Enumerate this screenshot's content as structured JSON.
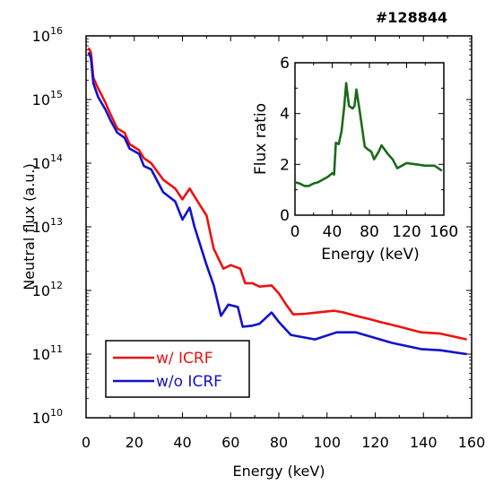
{
  "shot_label": "#128844",
  "chart_data": [
    {
      "type": "line",
      "xlabel": "Energy (keV)",
      "ylabel": "Neutral flux (a.u.)",
      "xlim": [
        0,
        160
      ],
      "ylim_log10": [
        10,
        16
      ],
      "yscale": "log",
      "x_ticks": [
        "0",
        "20",
        "40",
        "60",
        "80",
        "100",
        "120",
        "140",
        "160"
      ],
      "y_ticks": [
        {
          "base": "10",
          "exp": "10"
        },
        {
          "base": "10",
          "exp": "11"
        },
        {
          "base": "10",
          "exp": "12"
        },
        {
          "base": "10",
          "exp": "13"
        },
        {
          "base": "10",
          "exp": "14"
        },
        {
          "base": "10",
          "exp": "15"
        },
        {
          "base": "10",
          "exp": "16"
        }
      ],
      "legend_position": "bottom-left",
      "series": [
        {
          "name": "w/ ICRF",
          "color": "#ee1111",
          "points": [
            [
              1,
              6500000000000000.0
            ],
            [
              2,
              5500000000000000.0
            ],
            [
              3,
              2200000000000000.0
            ],
            [
              5,
              1500000000000000.0
            ],
            [
              8,
              900000000000000.0
            ],
            [
              10,
              600000000000000.0
            ],
            [
              13,
              350000000000000.0
            ],
            [
              16,
              300000000000000.0
            ],
            [
              18,
              200000000000000.0
            ],
            [
              22,
              160000000000000.0
            ],
            [
              24,
              120000000000000.0
            ],
            [
              27,
              100000000000000.0
            ],
            [
              32,
              55000000000000.0
            ],
            [
              37,
              40000000000000.0
            ],
            [
              40,
              27000000000000.0
            ],
            [
              43,
              40000000000000.0
            ],
            [
              45,
              30000000000000.0
            ],
            [
              50,
              15000000000000.0
            ],
            [
              53,
              4500000000000.0
            ],
            [
              57,
              2200000000000.0
            ],
            [
              60,
              2500000000000.0
            ],
            [
              64,
              2200000000000.0
            ],
            [
              66,
              1300000000000.0
            ],
            [
              69,
              1300000000000.0
            ],
            [
              72,
              1150000000000.0
            ],
            [
              77,
              1200000000000.0
            ],
            [
              80,
              900000000000.0
            ],
            [
              83,
              600000000000.0
            ],
            [
              86,
              420000000000.0
            ],
            [
              91,
              430000000000.0
            ],
            [
              96,
              450000000000.0
            ],
            [
              103,
              480000000000.0
            ],
            [
              107,
              450000000000.0
            ],
            [
              112,
              400000000000.0
            ],
            [
              117,
              360000000000.0
            ],
            [
              122,
              320000000000.0
            ],
            [
              130,
              270000000000.0
            ],
            [
              139,
              220000000000.0
            ],
            [
              147,
              210000000000.0
            ],
            [
              158,
              170000000000.0
            ]
          ]
        },
        {
          "name": "w/o ICRF",
          "color": "#1111cc",
          "points": [
            [
              1,
              5500000000000000.0
            ],
            [
              2,
              4500000000000000.0
            ],
            [
              3,
              1800000000000000.0
            ],
            [
              5,
              1100000000000000.0
            ],
            [
              8,
              700000000000000.0
            ],
            [
              10,
              480000000000000.0
            ],
            [
              13,
              300000000000000.0
            ],
            [
              16,
              250000000000000.0
            ],
            [
              18,
              170000000000000.0
            ],
            [
              22,
              140000000000000.0
            ],
            [
              24,
              90000000000000.0
            ],
            [
              27,
              80000000000000.0
            ],
            [
              32,
              35000000000000.0
            ],
            [
              37,
              25000000000000.0
            ],
            [
              40,
              13000000000000.0
            ],
            [
              43,
              20000000000000.0
            ],
            [
              45,
              10000000000000.0
            ],
            [
              50,
              2500000000000.0
            ],
            [
              53,
              1200000000000.0
            ],
            [
              56,
              400000000000.0
            ],
            [
              59,
              600000000000.0
            ],
            [
              63,
              550000000000.0
            ],
            [
              65,
              270000000000.0
            ],
            [
              69,
              280000000000.0
            ],
            [
              72,
              300000000000.0
            ],
            [
              77,
              450000000000.0
            ],
            [
              80,
              320000000000.0
            ],
            [
              85,
              200000000000.0
            ],
            [
              95,
              170000000000.0
            ],
            [
              104,
              220000000000.0
            ],
            [
              112,
              220000000000.0
            ],
            [
              127,
              150000000000.0
            ],
            [
              139,
              120000000000.0
            ],
            [
              147,
              115000000000.0
            ],
            [
              158,
              100000000000.0
            ]
          ]
        }
      ]
    },
    {
      "type": "line",
      "xlabel": "Energy (keV)",
      "ylabel": "Flux ratio",
      "xlim": [
        0,
        160
      ],
      "ylim": [
        0,
        6
      ],
      "x_ticks": [
        "0",
        "40",
        "80",
        "120",
        "160"
      ],
      "y_ticks": [
        "0",
        "2",
        "4",
        "6"
      ],
      "series": [
        {
          "color": "#1a6b1a",
          "points": [
            [
              0,
              1.3
            ],
            [
              5,
              1.25
            ],
            [
              10,
              1.15
            ],
            [
              15,
              1.15
            ],
            [
              20,
              1.25
            ],
            [
              25,
              1.3
            ],
            [
              30,
              1.4
            ],
            [
              35,
              1.5
            ],
            [
              40,
              1.65
            ],
            [
              42,
              1.6
            ],
            [
              44,
              2.85
            ],
            [
              47,
              2.8
            ],
            [
              50,
              3.3
            ],
            [
              53,
              4.3
            ],
            [
              55,
              5.2
            ],
            [
              58,
              4.3
            ],
            [
              62,
              4.2
            ],
            [
              64,
              4.3
            ],
            [
              66,
              4.95
            ],
            [
              70,
              4.0
            ],
            [
              75,
              2.7
            ],
            [
              78,
              2.6
            ],
            [
              82,
              2.5
            ],
            [
              85,
              2.2
            ],
            [
              90,
              2.5
            ],
            [
              93,
              2.75
            ],
            [
              100,
              2.4
            ],
            [
              105,
              2.2
            ],
            [
              110,
              1.85
            ],
            [
              115,
              1.95
            ],
            [
              120,
              2.05
            ],
            [
              130,
              2.0
            ],
            [
              140,
              1.95
            ],
            [
              150,
              1.95
            ],
            [
              158,
              1.75
            ]
          ]
        }
      ]
    }
  ]
}
